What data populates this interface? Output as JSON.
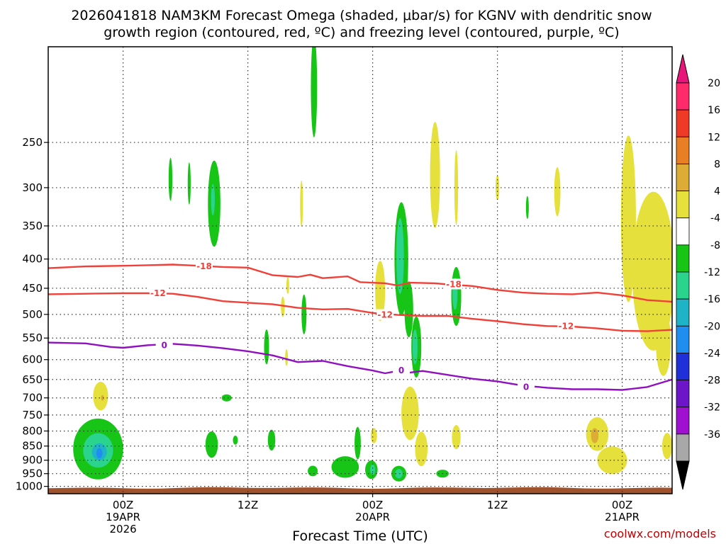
{
  "chart_data": {
    "type": "heatmap",
    "title_line1": "2026041818 NAM3KM Forecast Omega (shaded, μbar/s) for KGNV with dendritic snow",
    "title_line2": "growth region (contoured, red, ºC) and freezing level (contoured, purple, ºC)",
    "xlabel": "Forecast Time (UTC)",
    "credit": "coolwx.com/models",
    "x_range_hours": [
      -6,
      44
    ],
    "y_range_mb": [
      1030,
      170
    ],
    "y_ticks": [
      250,
      300,
      350,
      400,
      450,
      500,
      550,
      600,
      650,
      700,
      750,
      800,
      850,
      900,
      950,
      1000
    ],
    "x_ticks": [
      {
        "hour": 0,
        "lines": [
          "00Z",
          "19APR",
          "2026"
        ]
      },
      {
        "hour": 10,
        "lines": [
          "12Z"
        ]
      },
      {
        "hour": 20,
        "lines": [
          "00Z",
          "20APR"
        ]
      },
      {
        "hour": 30,
        "lines": [
          "12Z"
        ]
      },
      {
        "hour": 40,
        "lines": [
          "00Z",
          "21APR"
        ]
      }
    ],
    "colorbar": {
      "labels": [
        "20",
        "16",
        "12",
        "8",
        "4",
        "-4",
        "-8",
        "-12",
        "-16",
        "-20",
        "-24",
        "-28",
        "-32",
        "-36"
      ],
      "colors": [
        "#ff2a6a",
        "#f03a28",
        "#e87f24",
        "#dcac34",
        "#e6e03c",
        "#ffffff",
        "#17c517",
        "#2bd48c",
        "#1fb3c8",
        "#1f8ef0",
        "#2030d8",
        "#6d15c8",
        "#a010d0",
        "#a8a8a8"
      ],
      "top_arrow": "#e8157a",
      "bottom_arrow": "#000000"
    },
    "contours": [
      {
        "name": "dgz-minus18",
        "label": "-18",
        "color": "#f04038",
        "points": [
          [
            -6,
            415
          ],
          [
            -3,
            412
          ],
          [
            0,
            411
          ],
          [
            2,
            410
          ],
          [
            4,
            409
          ],
          [
            6,
            411
          ],
          [
            8,
            413
          ],
          [
            10,
            414
          ],
          [
            12,
            427
          ],
          [
            14,
            430
          ],
          [
            15,
            426
          ],
          [
            16,
            432
          ],
          [
            18,
            429
          ],
          [
            19,
            439
          ],
          [
            21,
            441
          ],
          [
            22,
            445
          ],
          [
            23,
            440
          ],
          [
            25,
            441
          ],
          [
            26,
            443
          ],
          [
            28,
            446
          ],
          [
            30,
            453
          ],
          [
            32,
            458
          ],
          [
            34,
            460
          ],
          [
            36,
            461
          ],
          [
            38,
            458
          ],
          [
            40,
            463
          ],
          [
            42,
            472
          ],
          [
            44,
            475
          ]
        ],
        "label_positions": [
          [
            6.5,
            412
          ],
          [
            26.5,
            443
          ]
        ]
      },
      {
        "name": "dgz-minus12",
        "label": "-12",
        "color": "#f04038",
        "points": [
          [
            -6,
            461
          ],
          [
            -3,
            460
          ],
          [
            0,
            459
          ],
          [
            2,
            459
          ],
          [
            4,
            460
          ],
          [
            6,
            466
          ],
          [
            8,
            474
          ],
          [
            10,
            477
          ],
          [
            12,
            480
          ],
          [
            14,
            487
          ],
          [
            16,
            490
          ],
          [
            18,
            489
          ],
          [
            20,
            497
          ],
          [
            22,
            501
          ],
          [
            24,
            503
          ],
          [
            26,
            503
          ],
          [
            28,
            509
          ],
          [
            30,
            514
          ],
          [
            32,
            520
          ],
          [
            34,
            524
          ],
          [
            36,
            525
          ],
          [
            38,
            529
          ],
          [
            40,
            534
          ],
          [
            42,
            535
          ],
          [
            44,
            532
          ]
        ],
        "label_positions": [
          [
            2.8,
            459
          ],
          [
            21,
            501
          ],
          [
            35.5,
            524
          ]
        ]
      },
      {
        "name": "freezing-level",
        "label": "0",
        "color": "#9010c0",
        "points": [
          [
            -6,
            560
          ],
          [
            -3,
            562
          ],
          [
            -1,
            570
          ],
          [
            0,
            572
          ],
          [
            2,
            566
          ],
          [
            4,
            563
          ],
          [
            6,
            567
          ],
          [
            8,
            573
          ],
          [
            10,
            580
          ],
          [
            12,
            590
          ],
          [
            14,
            606
          ],
          [
            16,
            603
          ],
          [
            18,
            616
          ],
          [
            20,
            627
          ],
          [
            21,
            634
          ],
          [
            22,
            628
          ],
          [
            23,
            632
          ],
          [
            24,
            628
          ],
          [
            26,
            638
          ],
          [
            28,
            648
          ],
          [
            30,
            655
          ],
          [
            32,
            666
          ],
          [
            34,
            672
          ],
          [
            36,
            676
          ],
          [
            38,
            676
          ],
          [
            40,
            678
          ],
          [
            42,
            670
          ],
          [
            44,
            650
          ]
        ],
        "label_positions": [
          [
            3.3,
            566
          ],
          [
            22.3,
            627
          ],
          [
            32.3,
            670
          ]
        ]
      }
    ],
    "omega_regions": [
      {
        "color": "#17c517",
        "hour": -2,
        "p": 860,
        "dh": 2.0,
        "dp": 105
      },
      {
        "color": "#2bd48c",
        "hour": -2,
        "p": 865,
        "dh": 1.2,
        "dp": 60
      },
      {
        "color": "#1fb3c8",
        "hour": -1.9,
        "p": 870,
        "dh": 0.6,
        "dp": 30
      },
      {
        "color": "#1f8ef0",
        "hour": -1.9,
        "p": 875,
        "dh": 0.25,
        "dp": 18
      },
      {
        "color": "#e6e03c",
        "hour": -1.8,
        "p": 695,
        "dh": 0.6,
        "dp": 40
      },
      {
        "color": "#dcac34",
        "hour": -1.65,
        "p": 700,
        "dh": 0.12,
        "dp": 8
      },
      {
        "color": "#17c517",
        "hour": 3.8,
        "p": 290,
        "dh": 0.15,
        "dp": 25
      },
      {
        "color": "#17c517",
        "hour": 5.3,
        "p": 295,
        "dh": 0.12,
        "dp": 25
      },
      {
        "color": "#17c517",
        "hour": 7.3,
        "p": 320,
        "dh": 0.5,
        "dp": 55
      },
      {
        "color": "#2bd48c",
        "hour": 7.2,
        "p": 315,
        "dh": 0.15,
        "dp": 20
      },
      {
        "color": "#17c517",
        "hour": 8.3,
        "p": 700,
        "dh": 0.4,
        "dp": 10
      },
      {
        "color": "#17c517",
        "hour": 7.1,
        "p": 845,
        "dh": 0.5,
        "dp": 45
      },
      {
        "color": "#17c517",
        "hour": 9.0,
        "p": 830,
        "dh": 0.2,
        "dp": 15
      },
      {
        "color": "#17c517",
        "hour": 11.9,
        "p": 830,
        "dh": 0.3,
        "dp": 35
      },
      {
        "color": "#17c517",
        "hour": 11.5,
        "p": 570,
        "dh": 0.2,
        "dp": 40
      },
      {
        "color": "#e6e03c",
        "hour": 12.8,
        "p": 485,
        "dh": 0.15,
        "dp": 20
      },
      {
        "color": "#e6e03c",
        "hour": 13.2,
        "p": 445,
        "dh": 0.1,
        "dp": 15
      },
      {
        "color": "#e6e03c",
        "hour": 13.1,
        "p": 595,
        "dh": 0.08,
        "dp": 20
      },
      {
        "color": "#17c517",
        "hour": 14.5,
        "p": 500,
        "dh": 0.2,
        "dp": 40
      },
      {
        "color": "#e6e03c",
        "hour": 14.3,
        "p": 320,
        "dh": 0.1,
        "dp": 30
      },
      {
        "color": "#17c517",
        "hour": 15.3,
        "p": 200,
        "dh": 0.25,
        "dp": 40
      },
      {
        "color": "#17c517",
        "hour": 15.2,
        "p": 940,
        "dh": 0.4,
        "dp": 20
      },
      {
        "color": "#17c517",
        "hour": 17.8,
        "p": 925,
        "dh": 1.1,
        "dp": 40
      },
      {
        "color": "#17c517",
        "hour": 18.8,
        "p": 840,
        "dh": 0.25,
        "dp": 55
      },
      {
        "color": "#17c517",
        "hour": 19.9,
        "p": 935,
        "dh": 0.5,
        "dp": 35
      },
      {
        "color": "#2bd48c",
        "hour": 20.0,
        "p": 935,
        "dh": 0.2,
        "dp": 20
      },
      {
        "color": "#e6e03c",
        "hour": 20.1,
        "p": 815,
        "dh": 0.25,
        "dp": 25
      },
      {
        "color": "#e6e03c",
        "hour": 20.6,
        "p": 455,
        "dh": 0.4,
        "dp": 55
      },
      {
        "color": "#17c517",
        "hour": 22.3,
        "p": 400,
        "dh": 0.55,
        "dp": 90
      },
      {
        "color": "#2bd48c",
        "hour": 22.2,
        "p": 395,
        "dh": 0.3,
        "dp": 60
      },
      {
        "color": "#17c517",
        "hour": 22.9,
        "p": 490,
        "dh": 0.35,
        "dp": 55
      },
      {
        "color": "#17c517",
        "hour": 23.5,
        "p": 570,
        "dh": 0.4,
        "dp": 70
      },
      {
        "color": "#2bd48c",
        "hour": 23.4,
        "p": 570,
        "dh": 0.2,
        "dp": 40
      },
      {
        "color": "#e6e03c",
        "hour": 23.0,
        "p": 745,
        "dh": 0.7,
        "dp": 80
      },
      {
        "color": "#e6e03c",
        "hour": 23.9,
        "p": 860,
        "dh": 0.5,
        "dp": 60
      },
      {
        "color": "#17c517",
        "hour": 22.1,
        "p": 950,
        "dh": 0.6,
        "dp": 30
      },
      {
        "color": "#2bd48c",
        "hour": 22.1,
        "p": 950,
        "dh": 0.3,
        "dp": 18
      },
      {
        "color": "#17c517",
        "hour": 25.6,
        "p": 950,
        "dh": 0.5,
        "dp": 15
      },
      {
        "color": "#e6e03c",
        "hour": 25.0,
        "p": 285,
        "dh": 0.4,
        "dp": 60
      },
      {
        "color": "#e6e03c",
        "hour": 26.7,
        "p": 300,
        "dh": 0.15,
        "dp": 45
      },
      {
        "color": "#17c517",
        "hour": 26.7,
        "p": 465,
        "dh": 0.4,
        "dp": 55
      },
      {
        "color": "#2bd48c",
        "hour": 26.6,
        "p": 460,
        "dh": 0.2,
        "dp": 30
      },
      {
        "color": "#e6e03c",
        "hour": 26.7,
        "p": 820,
        "dh": 0.35,
        "dp": 40
      },
      {
        "color": "#e6e03c",
        "hour": 30.0,
        "p": 300,
        "dh": 0.15,
        "dp": 15
      },
      {
        "color": "#17c517",
        "hour": 32.4,
        "p": 325,
        "dh": 0.1,
        "dp": 15
      },
      {
        "color": "#e6e03c",
        "hour": 34.8,
        "p": 305,
        "dh": 0.25,
        "dp": 30
      },
      {
        "color": "#e6e03c",
        "hour": 38.0,
        "p": 810,
        "dh": 0.9,
        "dp": 55
      },
      {
        "color": "#dcac34",
        "hour": 37.8,
        "p": 815,
        "dh": 0.3,
        "dp": 25
      },
      {
        "color": "#e6e03c",
        "hour": 39.2,
        "p": 900,
        "dh": 1.2,
        "dp": 50
      },
      {
        "color": "#e6e03c",
        "hour": 40.5,
        "p": 340,
        "dh": 0.6,
        "dp": 110
      },
      {
        "color": "#e6e03c",
        "hour": 42.5,
        "p": 420,
        "dh": 1.7,
        "dp": 130
      },
      {
        "color": "#e6e03c",
        "hour": 43.3,
        "p": 560,
        "dh": 0.6,
        "dp": 75
      },
      {
        "color": "#e6e03c",
        "hour": 43.6,
        "p": 850,
        "dh": 0.4,
        "dp": 45
      }
    ],
    "terrain_color": "#a0522d"
  }
}
